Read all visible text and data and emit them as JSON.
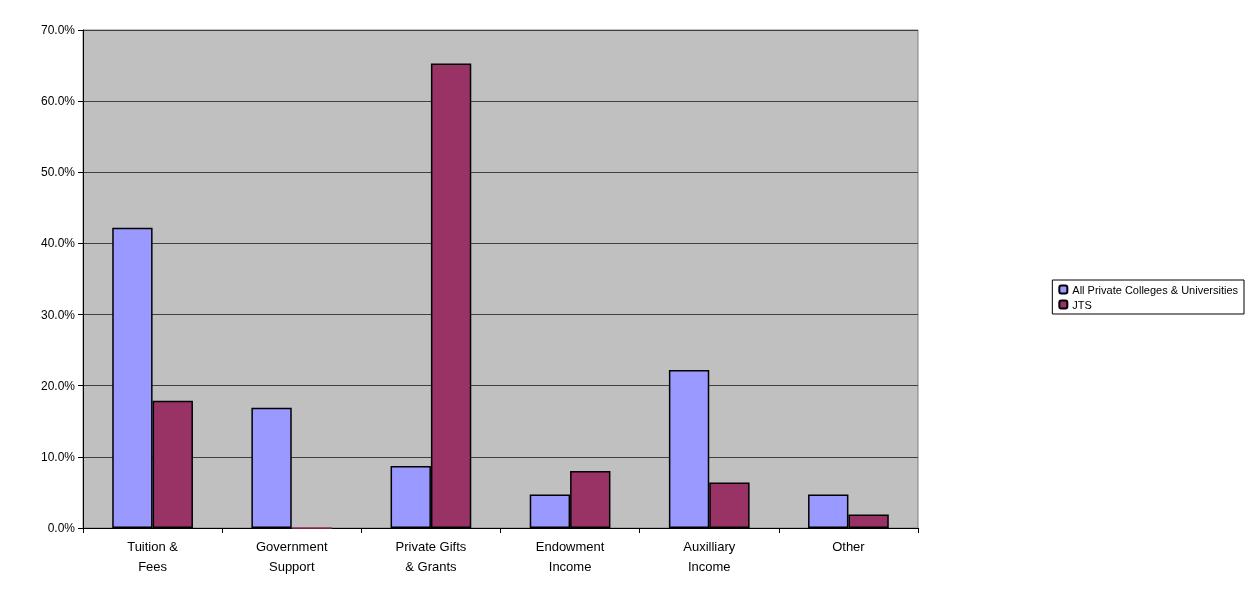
{
  "chart_data": {
    "type": "bar",
    "categories": [
      "Tuition &\nFees",
      "Government\nSupport",
      "Private Gifts\n& Grants",
      "Endowment\nIncome",
      "Auxilliary\nIncome",
      "Other"
    ],
    "series": [
      {
        "name": "All Private Colleges & Universities",
        "color": "#9999ff",
        "values": [
          42.2,
          16.9,
          8.7,
          4.7,
          22.2,
          4.7
        ]
      },
      {
        "name": "JTS",
        "color": "#993366",
        "values": [
          17.9,
          0,
          65.3,
          8.0,
          6.4,
          1.9
        ]
      }
    ],
    "ylim": [
      0,
      70
    ],
    "yticks": [
      {
        "value": 0,
        "label": "0.0%"
      },
      {
        "value": 10,
        "label": "10.0%"
      },
      {
        "value": 20,
        "label": "20.0%"
      },
      {
        "value": 30,
        "label": "30.0%"
      },
      {
        "value": 40,
        "label": "40.0%"
      },
      {
        "value": 50,
        "label": "50.0%"
      },
      {
        "value": 60,
        "label": "60.0%"
      },
      {
        "value": 70,
        "label": "70.0%"
      }
    ],
    "grid": "y",
    "legend": "right"
  }
}
